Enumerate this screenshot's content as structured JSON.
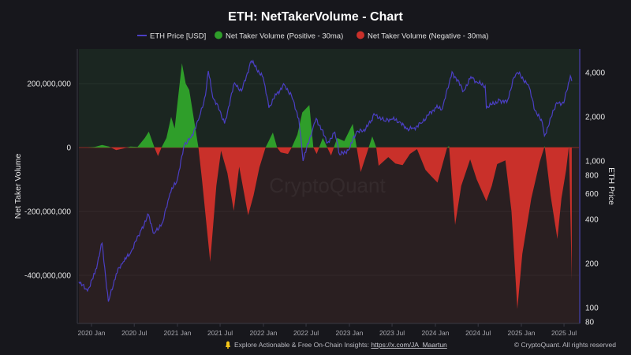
{
  "chart_data": {
    "type": "area",
    "title": "ETH: NetTakerVolume - Chart",
    "legend": [
      {
        "name": "ETH Price [USD]",
        "color": "#4b3fc4",
        "marker": "line"
      },
      {
        "name": "Net Taker Volume (Positive - 30ma)",
        "color": "#2f9e2a",
        "marker": "circle"
      },
      {
        "name": "Net Taker Volume (Negative - 30ma)",
        "color": "#c9302a",
        "marker": "circle"
      }
    ],
    "legend_position": "top-center",
    "ylabel_left": "Net Taker Volume",
    "ylabel_right": "ETH Price",
    "left_ticks": [
      "200,000,000",
      "0",
      "-200,000,000",
      "-400,000,000"
    ],
    "left_tick_values": [
      200000000,
      0,
      -200000000,
      -400000000
    ],
    "right_scale": "log",
    "right_ticks": [
      "4,000",
      "2,000",
      "1,000",
      "800",
      "600",
      "400",
      "200",
      "100",
      "80"
    ],
    "right_tick_values": [
      4000,
      2000,
      1000,
      800,
      600,
      400,
      200,
      100,
      80
    ],
    "x_ticks": [
      "2020 Jan",
      "2020 Jul",
      "2021 Jan",
      "2021 Jul",
      "2022 Jan",
      "2022 Jul",
      "2023 Jan",
      "2023 Jul",
      "2024 Jan",
      "2024 Jul",
      "2025 Jan",
      "2025 Jul"
    ],
    "x_tick_dates": [
      "2020-01-01",
      "2020-07-01",
      "2021-01-01",
      "2021-07-01",
      "2022-01-01",
      "2022-07-01",
      "2023-01-01",
      "2023-07-01",
      "2024-01-01",
      "2024-07-01",
      "2025-01-01",
      "2025-07-01"
    ],
    "grid": true,
    "volume_unit": "millions",
    "net_taker_volume": [
      [
        "2019-11-08",
        0
      ],
      [
        "2019-12-15",
        0
      ],
      [
        "2020-01-15",
        2
      ],
      [
        "2020-02-15",
        8
      ],
      [
        "2020-03-15",
        3
      ],
      [
        "2020-04-15",
        -8
      ],
      [
        "2020-05-15",
        -3
      ],
      [
        "2020-06-15",
        3
      ],
      [
        "2020-07-15",
        2
      ],
      [
        "2020-08-15",
        30
      ],
      [
        "2020-09-01",
        50
      ],
      [
        "2020-09-25",
        0
      ],
      [
        "2020-10-10",
        -27
      ],
      [
        "2020-10-25",
        0
      ],
      [
        "2020-11-15",
        30
      ],
      [
        "2020-12-05",
        96
      ],
      [
        "2020-12-20",
        60
      ],
      [
        "2021-01-20",
        264
      ],
      [
        "2021-02-05",
        200
      ],
      [
        "2021-02-20",
        180
      ],
      [
        "2021-03-31",
        0
      ],
      [
        "2021-04-15",
        -100
      ],
      [
        "2021-05-20",
        -358
      ],
      [
        "2021-06-15",
        -120
      ],
      [
        "2021-07-05",
        -10
      ],
      [
        "2021-08-01",
        -80
      ],
      [
        "2021-08-28",
        -198
      ],
      [
        "2021-09-20",
        -60
      ],
      [
        "2021-10-28",
        -212
      ],
      [
        "2021-11-20",
        -150
      ],
      [
        "2021-12-15",
        -62
      ],
      [
        "2022-01-10",
        0
      ],
      [
        "2022-02-10",
        47
      ],
      [
        "2022-02-28",
        0
      ],
      [
        "2022-03-15",
        -15
      ],
      [
        "2022-04-15",
        -20
      ],
      [
        "2022-05-01",
        0
      ],
      [
        "2022-05-25",
        40
      ],
      [
        "2022-06-15",
        110
      ],
      [
        "2022-07-15",
        133
      ],
      [
        "2022-08-01",
        0
      ],
      [
        "2022-08-15",
        -20
      ],
      [
        "2022-09-10",
        30
      ],
      [
        "2022-10-15",
        -25
      ],
      [
        "2022-11-10",
        30
      ],
      [
        "2022-12-10",
        20
      ],
      [
        "2023-01-15",
        74
      ],
      [
        "2023-02-01",
        0
      ],
      [
        "2023-02-18",
        -77
      ],
      [
        "2023-03-15",
        -20
      ],
      [
        "2023-04-08",
        35
      ],
      [
        "2023-04-25",
        0
      ],
      [
        "2023-05-05",
        -57
      ],
      [
        "2023-06-15",
        -30
      ],
      [
        "2023-07-15",
        -50
      ],
      [
        "2023-08-15",
        -55
      ],
      [
        "2023-09-15",
        -20
      ],
      [
        "2023-10-15",
        -5
      ],
      [
        "2023-11-20",
        -70
      ],
      [
        "2023-12-15",
        -90
      ],
      [
        "2024-01-10",
        -110
      ],
      [
        "2024-02-20",
        0
      ],
      [
        "2024-02-28",
        5
      ],
      [
        "2024-03-25",
        -242
      ],
      [
        "2024-04-20",
        -120
      ],
      [
        "2024-05-28",
        -37
      ],
      [
        "2024-06-25",
        -100
      ],
      [
        "2024-08-05",
        -168
      ],
      [
        "2024-08-28",
        -120
      ],
      [
        "2024-09-20",
        -52
      ],
      [
        "2024-10-25",
        -40
      ],
      [
        "2024-11-20",
        -200
      ],
      [
        "2024-12-15",
        -506
      ],
      [
        "2025-01-05",
        -333
      ],
      [
        "2025-02-12",
        -160
      ],
      [
        "2025-03-20",
        -45
      ],
      [
        "2025-04-10",
        5
      ],
      [
        "2025-05-05",
        -150
      ],
      [
        "2025-06-03",
        -286
      ],
      [
        "2025-06-20",
        -160
      ],
      [
        "2025-07-10",
        -70
      ],
      [
        "2025-07-22",
        5
      ],
      [
        "2025-08-03",
        -415
      ]
    ],
    "eth_price": [
      [
        "2019-11-08",
        150
      ],
      [
        "2019-12-15",
        130
      ],
      [
        "2020-01-15",
        170
      ],
      [
        "2020-02-15",
        275
      ],
      [
        "2020-03-13",
        110
      ],
      [
        "2020-04-15",
        170
      ],
      [
        "2020-05-15",
        205
      ],
      [
        "2020-06-15",
        235
      ],
      [
        "2020-07-31",
        340
      ],
      [
        "2020-08-31",
        430
      ],
      [
        "2020-09-23",
        320
      ],
      [
        "2020-10-31",
        385
      ],
      [
        "2020-11-30",
        600
      ],
      [
        "2020-12-31",
        740
      ],
      [
        "2021-01-31",
        1300
      ],
      [
        "2021-02-28",
        1450
      ],
      [
        "2021-03-31",
        1900
      ],
      [
        "2021-04-30",
        2800
      ],
      [
        "2021-05-12",
        4100
      ],
      [
        "2021-05-31",
        2700
      ],
      [
        "2021-06-30",
        2200
      ],
      [
        "2021-07-20",
        1800
      ],
      [
        "2021-08-31",
        3400
      ],
      [
        "2021-09-30",
        3000
      ],
      [
        "2021-11-10",
        4800
      ],
      [
        "2021-12-31",
        3700
      ],
      [
        "2022-01-24",
        2300
      ],
      [
        "2022-02-28",
        2900
      ],
      [
        "2022-03-31",
        3300
      ],
      [
        "2022-04-30",
        2800
      ],
      [
        "2022-05-31",
        1950
      ],
      [
        "2022-06-18",
        1000
      ],
      [
        "2022-07-31",
        1700
      ],
      [
        "2022-08-13",
        1950
      ],
      [
        "2022-09-30",
        1330
      ],
      [
        "2022-10-31",
        1570
      ],
      [
        "2022-11-21",
        1100
      ],
      [
        "2022-12-31",
        1200
      ],
      [
        "2023-01-31",
        1580
      ],
      [
        "2023-02-28",
        1600
      ],
      [
        "2023-03-31",
        1820
      ],
      [
        "2023-04-15",
        2100
      ],
      [
        "2023-05-31",
        1870
      ],
      [
        "2023-06-30",
        1930
      ],
      [
        "2023-07-31",
        1850
      ],
      [
        "2023-08-31",
        1650
      ],
      [
        "2023-09-30",
        1670
      ],
      [
        "2023-10-31",
        1800
      ],
      [
        "2023-11-30",
        2050
      ],
      [
        "2023-12-31",
        2300
      ],
      [
        "2024-01-31",
        2280
      ],
      [
        "2024-02-29",
        3400
      ],
      [
        "2024-03-12",
        4050
      ],
      [
        "2024-04-30",
        3000
      ],
      [
        "2024-05-31",
        3750
      ],
      [
        "2024-06-30",
        3400
      ],
      [
        "2024-07-31",
        3250
      ],
      [
        "2024-08-05",
        2300
      ],
      [
        "2024-09-30",
        2600
      ],
      [
        "2024-10-31",
        2500
      ],
      [
        "2024-11-30",
        3700
      ],
      [
        "2024-12-16",
        4000
      ],
      [
        "2025-01-31",
        3300
      ],
      [
        "2025-02-28",
        2200
      ],
      [
        "2025-03-31",
        1820
      ],
      [
        "2025-04-09",
        1480
      ],
      [
        "2025-05-31",
        2500
      ],
      [
        "2025-06-30",
        2480
      ],
      [
        "2025-07-28",
        3800
      ],
      [
        "2025-08-03",
        3500
      ]
    ]
  },
  "watermark": "CryptoQuant",
  "footer": {
    "promo_text": "Explore Actionable & Free On-Chain Insights: ",
    "promo_link": "https://x.com/JA_Maartun",
    "copyright": "© CryptoQuant. All rights reserved"
  },
  "colors": {
    "background": "#17171c",
    "positive_zone": "#1b2621",
    "negative_zone": "#2a1f21",
    "positive": "#2f9e2a",
    "negative": "#c9302a",
    "price": "#4b3fc4"
  }
}
